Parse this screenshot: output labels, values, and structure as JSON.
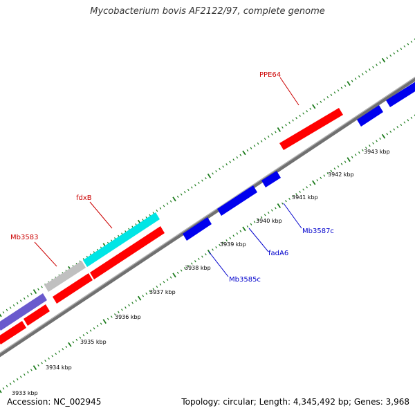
{
  "title": "Mycobacterium bovis AF2122/97, complete genome",
  "footer": {
    "accession": "Accession: NC_002945",
    "summary": "Topology: circular; Length: 4,345,492 bp; Genes: 3,968"
  },
  "colors": {
    "backbone": "#808080",
    "forward_cds": "#ff0000",
    "reverse_cds": "#0000ee",
    "forward_label": "#cc0000",
    "reverse_label": "#0000cc",
    "ticks": "#1a7a1a",
    "cyan": "#00e5e5",
    "grey": "#c0c0c0",
    "slate": "#6a5acd"
  },
  "ruler": {
    "ticks": [
      {
        "label": "3933 kbp"
      },
      {
        "label": "3934 kbp"
      },
      {
        "label": "3935 kbp"
      },
      {
        "label": "3936 kbp"
      },
      {
        "label": "3937 kbp"
      },
      {
        "label": "3938 kbp"
      },
      {
        "label": "3939 kbp"
      },
      {
        "label": "3940 kbp"
      },
      {
        "label": "3941 kbp"
      },
      {
        "label": "3942 kbp"
      },
      {
        "label": "3943 kbp"
      }
    ]
  },
  "genes": {
    "forward": [
      {
        "name": "PPE64",
        "color": "#ff0000"
      },
      {
        "name": "fdxB",
        "color": "#ff0000"
      },
      {
        "name": "Mb3583",
        "color": "#ff0000"
      }
    ],
    "reverse": [
      {
        "name": "Mb3587c",
        "color": "#0000ee"
      },
      {
        "name": "fadA6",
        "color": "#0000ee"
      },
      {
        "name": "Mb3585c",
        "color": "#0000ee"
      }
    ]
  }
}
